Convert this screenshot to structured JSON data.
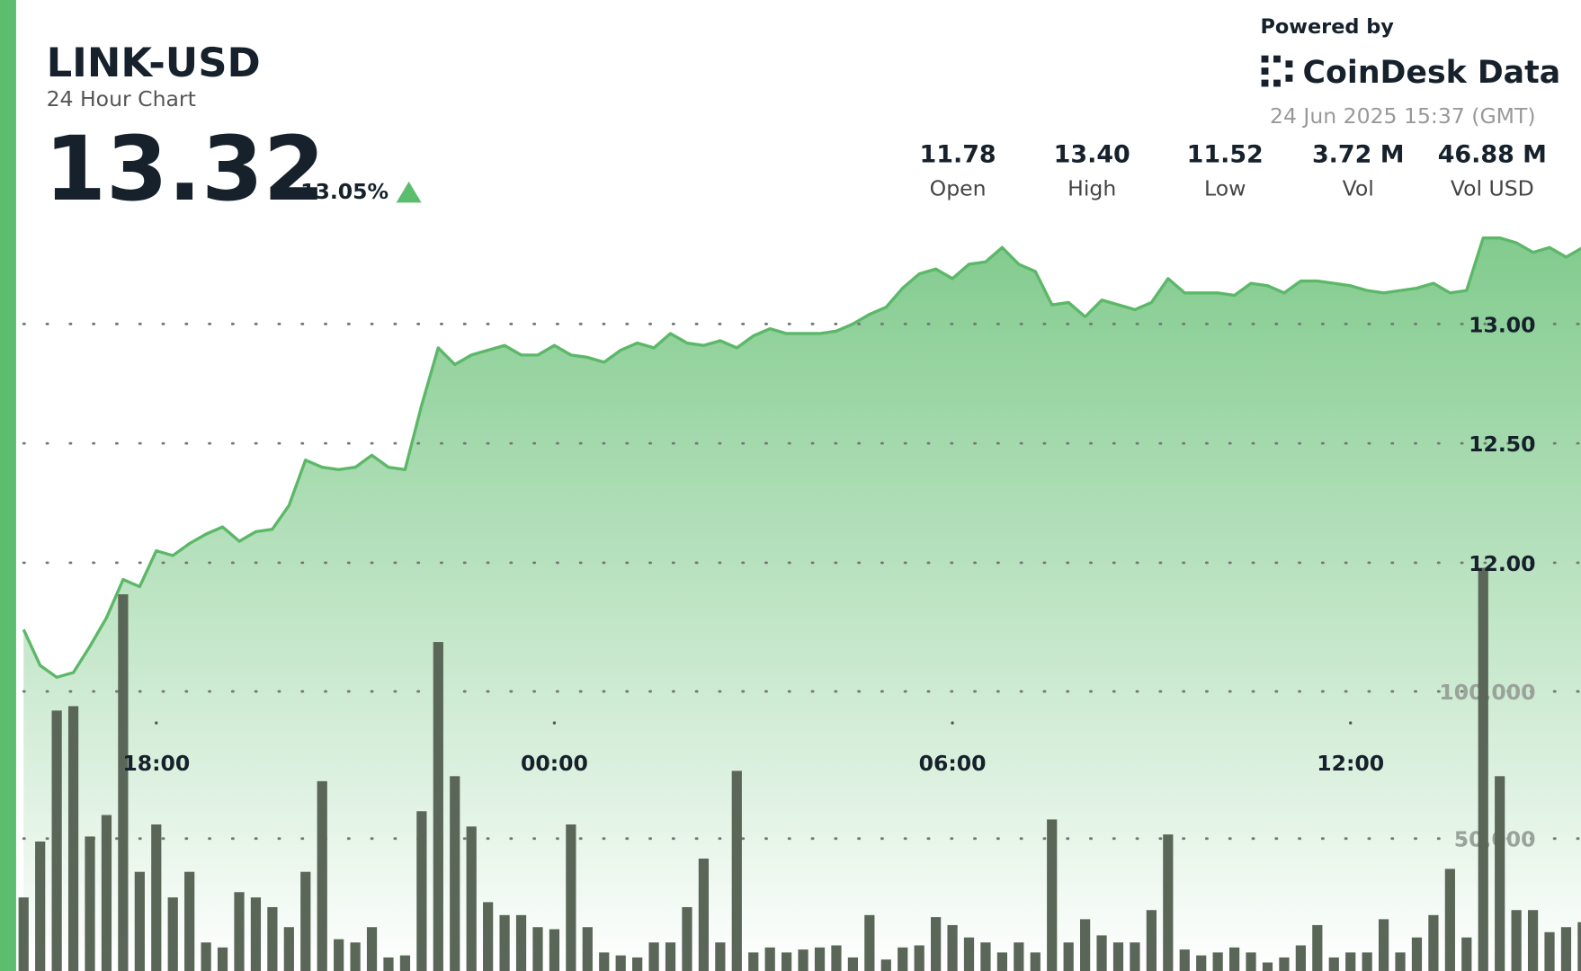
{
  "header": {
    "powered_by": "Powered by",
    "brand": "CoinDesk Data",
    "timestamp": "24 Jun 2025 15:37 (GMT)",
    "price": "13.32",
    "change": "13.05%",
    "stats": [
      {
        "value": "11.78",
        "label": "Open"
      },
      {
        "value": "13.40",
        "label": "High"
      },
      {
        "value": "11.52",
        "label": "Low"
      },
      {
        "value": "3.72 M",
        "label": "Vol"
      },
      {
        "value": "46.88 M",
        "label": "Vol USD"
      }
    ]
  },
  "chart_data": {
    "type": "line",
    "title": "LINK-USD",
    "subtitle": "24 Hour Chart",
    "categories": [
      null,
      null,
      null,
      null,
      null,
      null,
      null,
      null,
      "18:00",
      null,
      null,
      null,
      null,
      null,
      null,
      null,
      null,
      null,
      null,
      null,
      null,
      null,
      null,
      null,
      null,
      null,
      null,
      null,
      null,
      null,
      null,
      null,
      "00:00",
      null,
      null,
      null,
      null,
      null,
      null,
      null,
      null,
      null,
      null,
      null,
      null,
      null,
      null,
      null,
      null,
      null,
      null,
      null,
      null,
      null,
      null,
      null,
      "06:00",
      null,
      null,
      null,
      null,
      null,
      null,
      null,
      null,
      null,
      null,
      null,
      null,
      null,
      null,
      null,
      null,
      null,
      null,
      null,
      null,
      null,
      null,
      null,
      "12:00",
      null,
      null,
      null,
      null,
      null,
      null,
      null,
      null,
      null,
      null,
      null,
      null,
      null,
      null
    ],
    "series": [
      {
        "color": "#5cb868",
        "values": [
          11.72,
          11.57,
          11.52,
          11.54,
          11.65,
          11.77,
          11.93,
          11.9,
          12.05,
          12.03,
          12.08,
          12.12,
          12.15,
          12.09,
          12.13,
          12.14,
          12.24,
          12.43,
          12.4,
          12.39,
          12.4,
          12.45,
          12.4,
          12.39,
          12.66,
          12.9,
          12.83,
          12.87,
          12.89,
          12.91,
          12.87,
          12.87,
          12.91,
          12.87,
          12.86,
          12.84,
          12.89,
          12.92,
          12.9,
          12.96,
          12.92,
          12.91,
          12.93,
          12.9,
          12.95,
          12.98,
          12.96,
          12.96,
          12.96,
          12.97,
          13.0,
          13.04,
          13.07,
          13.15,
          13.21,
          13.23,
          13.19,
          13.25,
          13.26,
          13.32,
          13.25,
          13.22,
          13.08,
          13.09,
          13.03,
          13.1,
          13.08,
          13.06,
          13.09,
          13.19,
          13.13,
          13.13,
          13.13,
          13.12,
          13.17,
          13.16,
          13.13,
          13.18,
          13.18,
          13.17,
          13.16,
          13.14,
          13.13,
          13.14,
          13.15,
          13.17,
          13.13,
          13.14,
          13.36,
          13.36,
          13.34,
          13.3,
          13.32,
          13.28,
          13.32
        ]
      },
      {
        "color": "#5a6658",
        "axis": "y2",
        "values": [
          30000,
          49000,
          93500,
          95000,
          50700,
          58000,
          133000,
          38700,
          54800,
          30000,
          38700,
          14700,
          13000,
          31800,
          30000,
          26700,
          19900,
          38700,
          69500,
          15800,
          14700,
          19900,
          9600,
          10300,
          59300,
          116800,
          71200,
          54100,
          28400,
          24000,
          24000,
          19900,
          19200,
          54800,
          19900,
          11300,
          10300,
          9600,
          14700,
          14700,
          26700,
          43200,
          14700,
          73000,
          11300,
          13000,
          11300,
          12300,
          13000,
          13700,
          9600,
          24000,
          8900,
          13000,
          13700,
          23300,
          20600,
          16400,
          14700,
          11300,
          14700,
          11300,
          56500,
          14700,
          22600,
          17100,
          14700,
          14700,
          25700,
          51400,
          12300,
          10300,
          11300,
          13000,
          11300,
          7900,
          9600,
          13700,
          20600,
          9600,
          11300,
          11300,
          22600,
          11300,
          16400,
          24000,
          39700,
          16400,
          142000,
          71200,
          25700,
          25700,
          18200,
          19900,
          21600
        ]
      }
    ],
    "ylim": [
      10.29,
      13.47
    ],
    "yticks": [
      {
        "value": 12,
        "label": "12.00"
      },
      {
        "value": 12.5,
        "label": "12.50"
      },
      {
        "value": 13,
        "label": "13.00"
      }
    ],
    "y2lim": [
      5000,
      263000
    ],
    "y2ticks": [
      {
        "value": 50000,
        "label": "50,000"
      },
      {
        "value": 100000,
        "label": "100,000"
      }
    ],
    "grid": true
  }
}
